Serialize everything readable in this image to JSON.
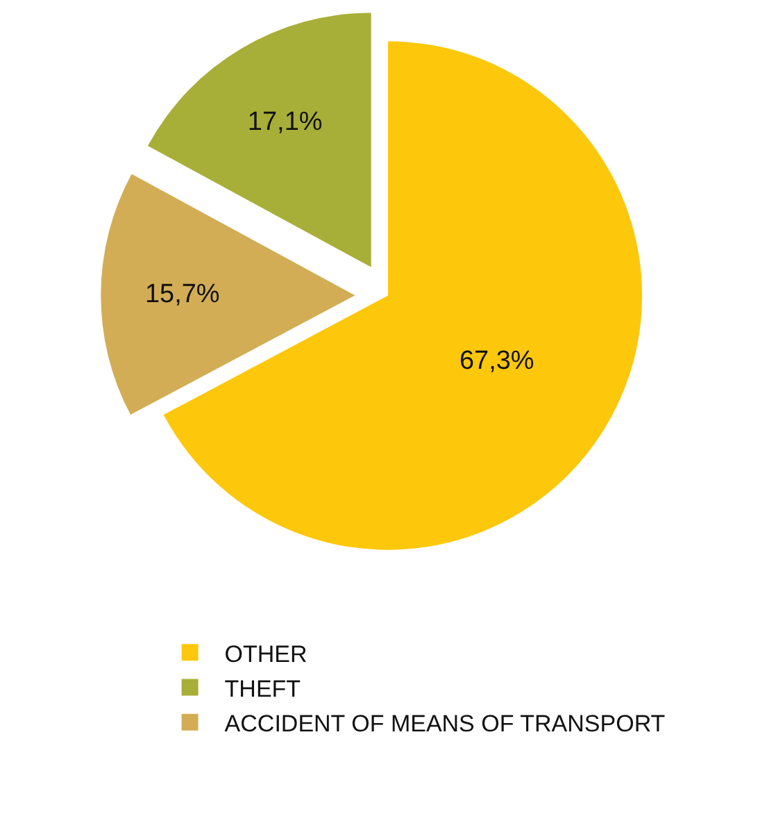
{
  "chart_data": {
    "type": "pie",
    "categories": [
      "OTHER",
      "THEFT",
      "ACCIDENT OF MEANS OF TRANSPORT"
    ],
    "values": [
      67.3,
      17.1,
      15.7
    ],
    "colors": [
      "#fdc80b",
      "#a8af38",
      "#d2ad55"
    ],
    "value_labels": [
      "67,3%",
      "17,1%",
      "15,7%"
    ],
    "legend": "bottom"
  }
}
